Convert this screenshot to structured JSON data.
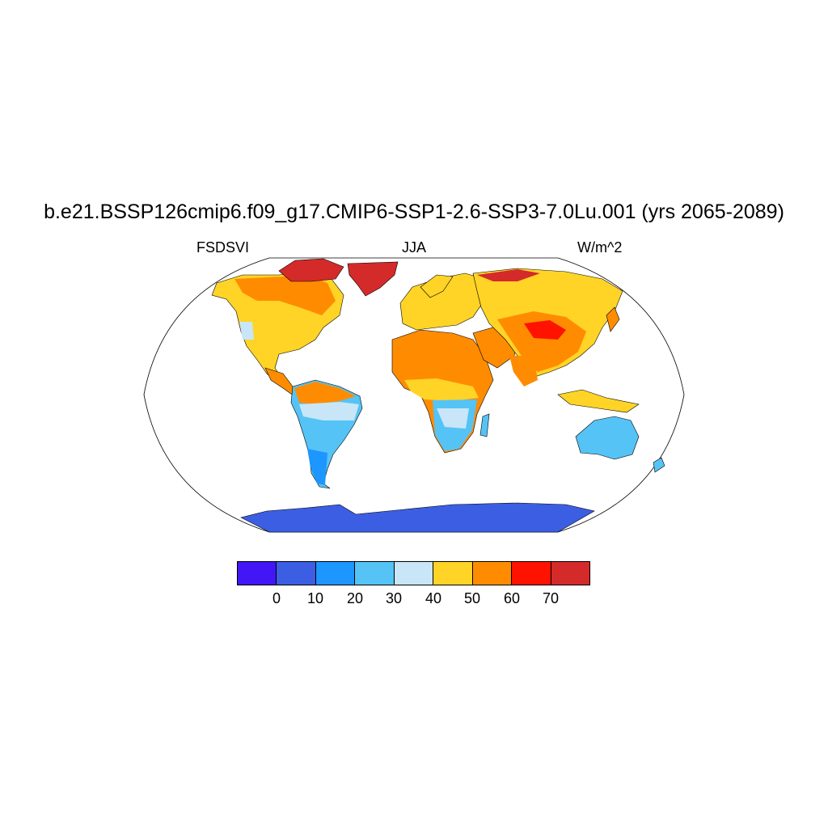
{
  "title": "b.e21.BSSP126cmip6.f09_g17.CMIP6-SSP1-2.6-SSP3-7.0Lu.001 (yrs 2065-2089)",
  "left_label": "FSDSVI",
  "center_label": "JJA",
  "right_label": "W/m^2",
  "colorbar": {
    "colors": [
      "#4216f5",
      "#3b5ee3",
      "#1e96ff",
      "#55c3f5",
      "#c8e6f7",
      "#ffd426",
      "#ff8c00",
      "#ff1200",
      "#d42a2a"
    ],
    "labels": [
      "0",
      "10",
      "20",
      "30",
      "40",
      "50",
      "60",
      "70"
    ]
  },
  "map": {
    "projection": "Robinson",
    "colors": {
      "antarctica": "#3b5ee3",
      "greenland": "#d42a2a",
      "outline": "#000000"
    }
  }
}
